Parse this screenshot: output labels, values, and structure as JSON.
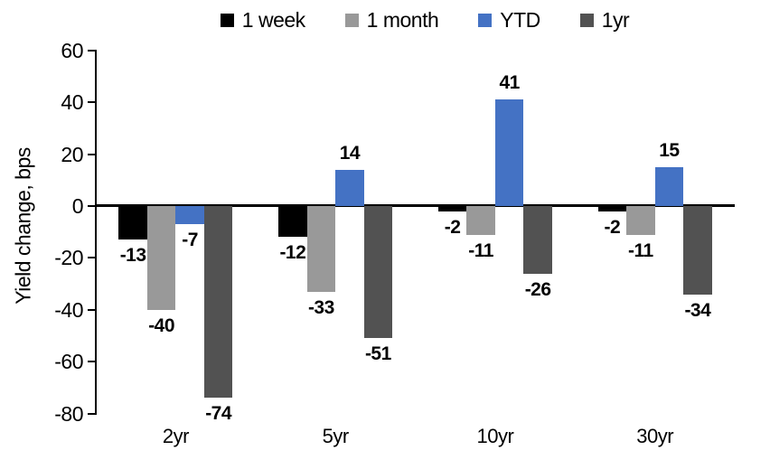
{
  "chart_data": {
    "type": "bar",
    "title": "",
    "ylabel": "Yield change, bps",
    "xlabel": "",
    "categories": [
      "2yr",
      "5yr",
      "10yr",
      "30yr"
    ],
    "series": [
      {
        "name": "1 week",
        "color": "#000000",
        "values": [
          -13,
          -12,
          -2,
          -2
        ]
      },
      {
        "name": "1 month",
        "color": "#999999",
        "values": [
          -40,
          -33,
          -11,
          -11
        ]
      },
      {
        "name": "YTD",
        "color": "#4472c4",
        "values": [
          -7,
          14,
          41,
          15
        ]
      },
      {
        "name": "1yr",
        "color": "#525252",
        "values": [
          -74,
          -51,
          -26,
          -34
        ]
      }
    ],
    "yticks": [
      60,
      40,
      20,
      0,
      -20,
      -40,
      -60,
      -80
    ],
    "ylim": [
      -80,
      60
    ],
    "grid": false,
    "legend_position": "top",
    "data_labels": true,
    "axis_color": "#000000"
  }
}
